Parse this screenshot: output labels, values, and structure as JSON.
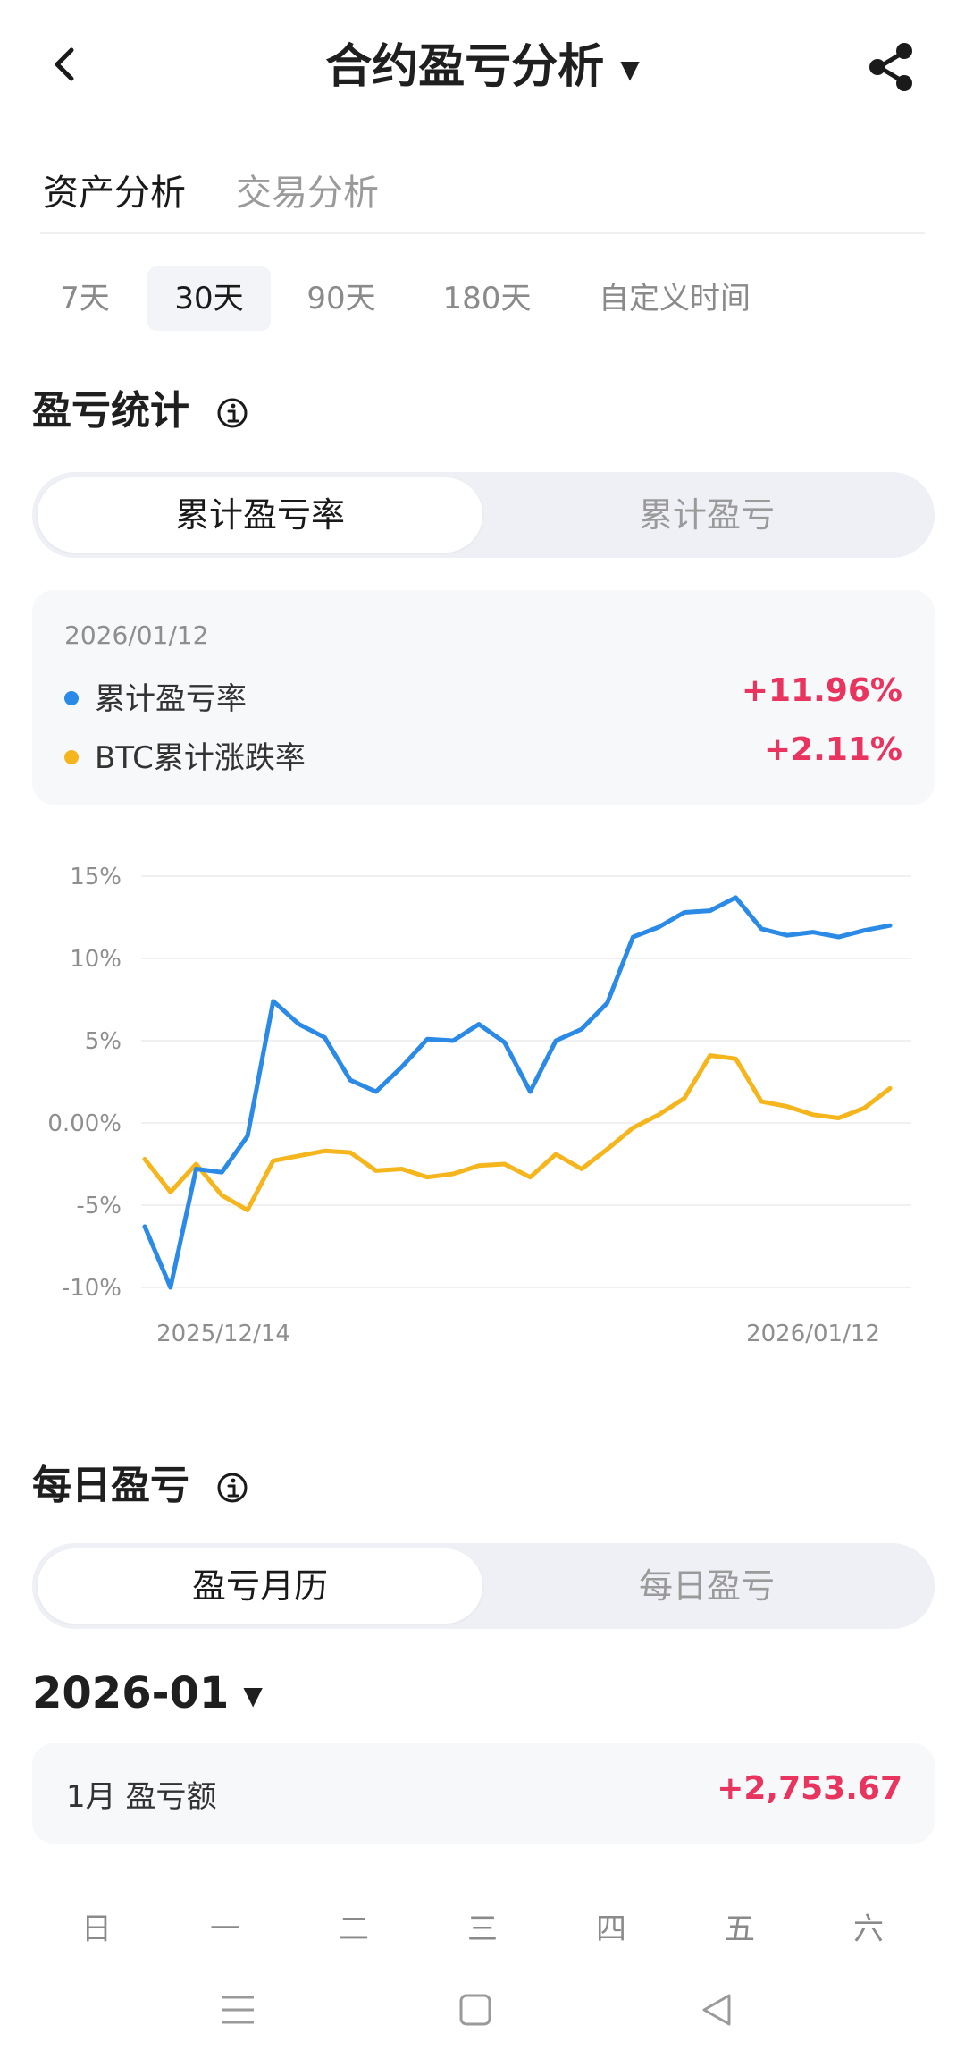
{
  "header": {
    "title": "合约盈亏分析"
  },
  "main_tabs": [
    {
      "label": "资产分析",
      "active": true
    },
    {
      "label": "交易分析",
      "active": false
    }
  ],
  "ranges": [
    {
      "label": "7天",
      "active": false
    },
    {
      "label": "30天",
      "active": true
    },
    {
      "label": "90天",
      "active": false
    },
    {
      "label": "180天",
      "active": false
    },
    {
      "label": "自定义时间",
      "active": false
    }
  ],
  "pnl_stats": {
    "title": "盈亏统计",
    "segments": [
      "累计盈亏率",
      "累计盈亏"
    ],
    "active_segment": 0,
    "card": {
      "date": "2026/01/12",
      "rows": [
        {
          "label": "累计盈亏率",
          "value": "+11.96%",
          "color": "#2b8ae6"
        },
        {
          "label": "BTC累计涨跌率",
          "value": "+2.11%",
          "color": "#f5b51d"
        }
      ]
    }
  },
  "chart_data": {
    "type": "line",
    "y_ticks": [
      "15%",
      "10%",
      "5%",
      "0.00%",
      "-5%",
      "-10%"
    ],
    "ylim": [
      -10,
      15
    ],
    "x_labels": [
      "2025/12/14",
      "2026/01/12"
    ],
    "grid": true,
    "series": [
      {
        "name": "累计盈亏率",
        "color": "#2b8ae6",
        "values": [
          -6.3,
          -10,
          -2.8,
          -3.0,
          -0.8,
          7.4,
          6.0,
          5.2,
          2.6,
          1.9,
          3.4,
          5.1,
          5.0,
          6.0,
          4.9,
          1.9,
          5.0,
          5.7,
          7.3,
          11.3,
          11.9,
          12.8,
          12.9,
          13.7,
          11.8,
          11.4,
          11.6,
          11.3,
          11.7,
          12.0
        ]
      },
      {
        "name": "BTC累计涨跌率",
        "color": "#f5b51d",
        "values": [
          -2.2,
          -4.2,
          -2.5,
          -4.4,
          -5.3,
          -2.3,
          -2.0,
          -1.7,
          -1.8,
          -2.9,
          -2.8,
          -3.3,
          -3.1,
          -2.6,
          -2.5,
          -3.3,
          -1.9,
          -2.8,
          -1.6,
          -0.3,
          0.5,
          1.5,
          4.1,
          3.9,
          1.3,
          1.0,
          0.5,
          0.3,
          0.9,
          2.1
        ]
      }
    ]
  },
  "daily": {
    "title": "每日盈亏",
    "segments": [
      "盈亏月历",
      "每日盈亏"
    ],
    "active_segment": 0,
    "month": "2026-01",
    "summary_label": "1月 盈亏额",
    "summary_value": "+2,753.67",
    "weekdays": [
      "日",
      "一",
      "二",
      "三",
      "四",
      "五",
      "六"
    ]
  },
  "icons": {
    "back": "chevron-left-icon",
    "share": "share-icon",
    "info": "info-icon",
    "nav_menu": "menu-icon",
    "nav_home": "square-icon",
    "nav_back": "triangle-back-icon"
  },
  "colors": {
    "accent_red": "#e8345e",
    "blue": "#2b8ae6",
    "yellow": "#f5b51d"
  }
}
